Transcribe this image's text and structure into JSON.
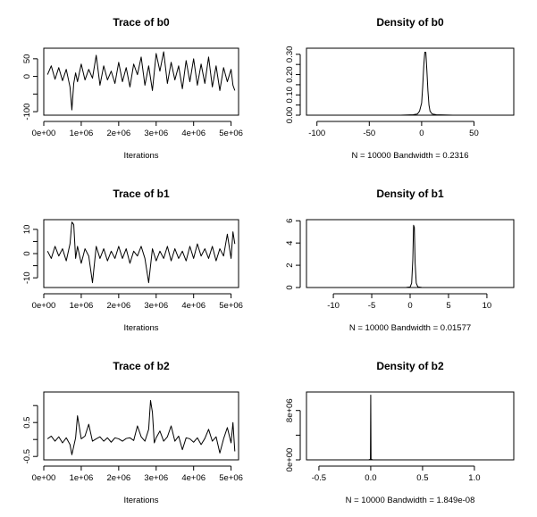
{
  "chart_data": [
    {
      "type": "line",
      "panel": "trace-b0",
      "title": "Trace of b0",
      "xlabel": "Iterations",
      "ylabel": "",
      "xlim": [
        0,
        5200000
      ],
      "ylim": [
        -110,
        80
      ],
      "xticks": [
        0,
        1000000,
        2000000,
        3000000,
        4000000,
        5000000
      ],
      "xtick_labels": [
        "0e+00",
        "1e+06",
        "2e+06",
        "3e+06",
        "4e+06",
        "5e+06"
      ],
      "yticks": [
        -100,
        -50,
        0,
        50
      ],
      "ytick_labels": [
        "-100",
        "",
        "0",
        "50"
      ],
      "x": [
        100000,
        200000,
        300000,
        400000,
        500000,
        600000,
        700000,
        750000,
        800000,
        850000,
        900000,
        1000000,
        1100000,
        1200000,
        1300000,
        1400000,
        1500000,
        1600000,
        1700000,
        1800000,
        1900000,
        2000000,
        2100000,
        2200000,
        2300000,
        2400000,
        2500000,
        2600000,
        2700000,
        2800000,
        2900000,
        3000000,
        3100000,
        3200000,
        3300000,
        3400000,
        3500000,
        3600000,
        3700000,
        3800000,
        3900000,
        4000000,
        4100000,
        4200000,
        4300000,
        4400000,
        4500000,
        4600000,
        4700000,
        4800000,
        4900000,
        5000000,
        5050000,
        5100000
      ],
      "values": [
        5,
        30,
        -8,
        25,
        -12,
        20,
        -30,
        -95,
        -20,
        10,
        -15,
        35,
        -10,
        20,
        -5,
        60,
        -25,
        30,
        -10,
        15,
        -20,
        40,
        -15,
        25,
        -30,
        35,
        5,
        55,
        -25,
        30,
        -40,
        65,
        15,
        70,
        -20,
        40,
        -10,
        30,
        -35,
        45,
        -15,
        50,
        -25,
        35,
        -20,
        55,
        -30,
        30,
        -40,
        25,
        -15,
        20,
        -25,
        -40
      ]
    },
    {
      "type": "line",
      "panel": "density-b0",
      "title": "Density of b0",
      "xlabel": "N = 10000   Bandwidth = 0.2316",
      "ylabel": "",
      "xlim": [
        -110,
        88
      ],
      "ylim": [
        0,
        0.33
      ],
      "xticks": [
        -100,
        -50,
        0,
        50
      ],
      "xtick_labels": [
        "-100",
        "-50",
        "0",
        "50"
      ],
      "yticks": [
        0,
        0.05,
        0.1,
        0.15,
        0.2,
        0.25,
        0.3
      ],
      "ytick_labels": [
        "0.00",
        "",
        "0.10",
        "",
        "0.20",
        "",
        "0.30"
      ],
      "x": [
        -97,
        -20,
        -8,
        -4,
        -2,
        0,
        1,
        2,
        3,
        4,
        5,
        6,
        7,
        8,
        10,
        14,
        30,
        84
      ],
      "values": [
        0,
        0,
        0.002,
        0.006,
        0.02,
        0.06,
        0.14,
        0.24,
        0.31,
        0.31,
        0.22,
        0.12,
        0.05,
        0.02,
        0.006,
        0.002,
        0,
        0
      ]
    },
    {
      "type": "line",
      "panel": "trace-b1",
      "title": "Trace of b1",
      "xlabel": "Iterations",
      "ylabel": "",
      "xlim": [
        0,
        5200000
      ],
      "ylim": [
        -14,
        14
      ],
      "xticks": [
        0,
        1000000,
        2000000,
        3000000,
        4000000,
        5000000
      ],
      "xtick_labels": [
        "0e+00",
        "1e+06",
        "2e+06",
        "3e+06",
        "4e+06",
        "5e+06"
      ],
      "yticks": [
        -10,
        -5,
        0,
        5,
        10
      ],
      "ytick_labels": [
        "-10",
        "",
        "0",
        "",
        "10"
      ],
      "x": [
        100000,
        200000,
        300000,
        400000,
        500000,
        600000,
        700000,
        750000,
        800000,
        850000,
        900000,
        1000000,
        1100000,
        1200000,
        1300000,
        1400000,
        1500000,
        1600000,
        1700000,
        1800000,
        1900000,
        2000000,
        2100000,
        2200000,
        2300000,
        2400000,
        2500000,
        2600000,
        2700000,
        2800000,
        2900000,
        3000000,
        3100000,
        3200000,
        3300000,
        3400000,
        3500000,
        3600000,
        3700000,
        3800000,
        3900000,
        4000000,
        4100000,
        4200000,
        4300000,
        4400000,
        4500000,
        4600000,
        4700000,
        4800000,
        4900000,
        5000000,
        5050000,
        5100000
      ],
      "values": [
        1,
        -2,
        3,
        -1,
        2,
        -3,
        4,
        13,
        12,
        -2,
        3,
        -4,
        2,
        -1,
        -12,
        3,
        -2,
        2,
        -3,
        1,
        -2,
        3,
        -2,
        2,
        -4,
        1,
        -1,
        3,
        -2,
        -12,
        2,
        -3,
        1,
        -2,
        3,
        -3,
        2,
        -2,
        1,
        -3,
        3,
        -2,
        4,
        -1,
        2,
        -2,
        3,
        -3,
        2,
        -1,
        8,
        -2,
        9,
        4
      ]
    },
    {
      "type": "line",
      "panel": "density-b1",
      "title": "Density of b1",
      "xlabel": "N = 10000   Bandwidth = 0.01577",
      "ylabel": "",
      "xlim": [
        -13.5,
        13.5
      ],
      "ylim": [
        0,
        6.1
      ],
      "xticks": [
        -10,
        -5,
        0,
        5,
        10
      ],
      "xtick_labels": [
        "-10",
        "-5",
        "0",
        "5",
        "10"
      ],
      "yticks": [
        0,
        2,
        4,
        6
      ],
      "ytick_labels": [
        "0",
        "2",
        "4",
        "6"
      ],
      "x": [
        -12.5,
        -2,
        -0.5,
        0,
        0.2,
        0.35,
        0.45,
        0.55,
        0.65,
        0.8,
        1.0,
        1.5,
        3,
        13
      ],
      "values": [
        0,
        0,
        0.01,
        0.05,
        0.4,
        2.5,
        5.6,
        5.4,
        2.2,
        0.4,
        0.06,
        0.01,
        0,
        0
      ]
    },
    {
      "type": "line",
      "panel": "trace-b2",
      "title": "Trace of b2",
      "xlabel": "Iterations",
      "ylabel": "",
      "xlim": [
        0,
        5200000
      ],
      "ylim": [
        -0.6,
        1.4
      ],
      "xticks": [
        0,
        1000000,
        2000000,
        3000000,
        4000000,
        5000000
      ],
      "xtick_labels": [
        "0e+00",
        "1e+06",
        "2e+06",
        "3e+06",
        "4e+06",
        "5e+06"
      ],
      "yticks": [
        -0.5,
        0,
        0.5,
        1.0
      ],
      "ytick_labels": [
        "-0.5",
        "",
        "0.5",
        ""
      ],
      "x": [
        100000,
        200000,
        300000,
        400000,
        500000,
        600000,
        700000,
        750000,
        800000,
        850000,
        900000,
        1000000,
        1100000,
        1200000,
        1300000,
        1400000,
        1500000,
        1600000,
        1700000,
        1800000,
        1900000,
        2000000,
        2100000,
        2200000,
        2300000,
        2400000,
        2500000,
        2600000,
        2700000,
        2800000,
        2850000,
        2900000,
        2950000,
        3000000,
        3100000,
        3200000,
        3300000,
        3400000,
        3500000,
        3600000,
        3700000,
        3800000,
        3900000,
        4000000,
        4100000,
        4200000,
        4300000,
        4400000,
        4500000,
        4600000,
        4700000,
        4800000,
        4900000,
        5000000,
        5050000,
        5100000
      ],
      "values": [
        0.02,
        0.1,
        -0.05,
        0.08,
        -0.1,
        0.05,
        -0.15,
        -0.45,
        -0.2,
        0.05,
        0.7,
        0.02,
        0.1,
        0.45,
        -0.05,
        0.02,
        0.08,
        -0.05,
        0.05,
        -0.08,
        0.05,
        0.02,
        -0.05,
        0.03,
        0.05,
        -0.03,
        0.4,
        0.08,
        -0.05,
        0.3,
        1.15,
        0.8,
        -0.1,
        0.05,
        0.25,
        -0.05,
        0.08,
        0.4,
        -0.05,
        0.1,
        -0.3,
        0.05,
        0.02,
        -0.08,
        0.05,
        -0.15,
        0.03,
        0.3,
        -0.05,
        0.08,
        -0.4,
        0.02,
        0.35,
        -0.1,
        0.5,
        -0.35
      ]
    },
    {
      "type": "line",
      "panel": "density-b2",
      "title": "Density of b2",
      "xlabel": "N = 10000   Bandwidth = 1.849e-08",
      "ylabel": "",
      "xlim": [
        -0.62,
        1.38
      ],
      "ylim": [
        0,
        11000000
      ],
      "xticks": [
        -0.5,
        0,
        0.5,
        1.0
      ],
      "xtick_labels": [
        "-0.5",
        "0.0",
        "0.5",
        "1.0"
      ],
      "yticks": [
        0,
        4000000,
        8000000
      ],
      "ytick_labels": [
        "0e+00",
        "",
        "8e+06"
      ],
      "x": [
        -0.5,
        -0.02,
        -0.003,
        0,
        0.003,
        0.02,
        1.33
      ],
      "values": [
        0,
        0,
        100000,
        10500000,
        100000,
        0,
        0
      ]
    }
  ]
}
